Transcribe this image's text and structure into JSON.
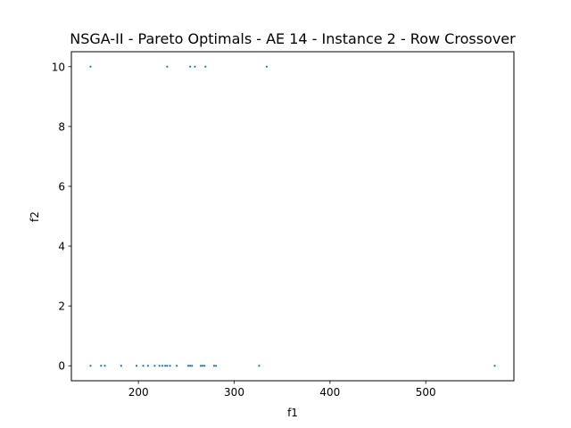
{
  "chart_data": {
    "type": "scatter",
    "title": "NSGA-II - Pareto Optimals - AE 14 - Instance 2 - Row Crossover",
    "xlabel": "f1",
    "ylabel": "f2",
    "xlim": [
      130,
      592
    ],
    "ylim": [
      -0.5,
      10.5
    ],
    "xticks": [
      200,
      300,
      400,
      500
    ],
    "yticks": [
      0,
      2,
      4,
      6,
      8,
      10
    ],
    "grid": false,
    "marker_color": "#1f77b4",
    "series": [
      {
        "points": [
          [
            150,
            10
          ],
          [
            230,
            10
          ],
          [
            254,
            10
          ],
          [
            259,
            10
          ],
          [
            270,
            10
          ],
          [
            334,
            10
          ],
          [
            150,
            0
          ],
          [
            161,
            0
          ],
          [
            165,
            0
          ],
          [
            182,
            0
          ],
          [
            198,
            0
          ],
          [
            205,
            0
          ],
          [
            210,
            0
          ],
          [
            217,
            0
          ],
          [
            222,
            0
          ],
          [
            225,
            0
          ],
          [
            228,
            0
          ],
          [
            230,
            0
          ],
          [
            233,
            0
          ],
          [
            240,
            0
          ],
          [
            252,
            0
          ],
          [
            254,
            0
          ],
          [
            256,
            0
          ],
          [
            265,
            0
          ],
          [
            267,
            0
          ],
          [
            269,
            0
          ],
          [
            279,
            0
          ],
          [
            281,
            0
          ],
          [
            326,
            0
          ],
          [
            572,
            0
          ]
        ]
      }
    ]
  }
}
